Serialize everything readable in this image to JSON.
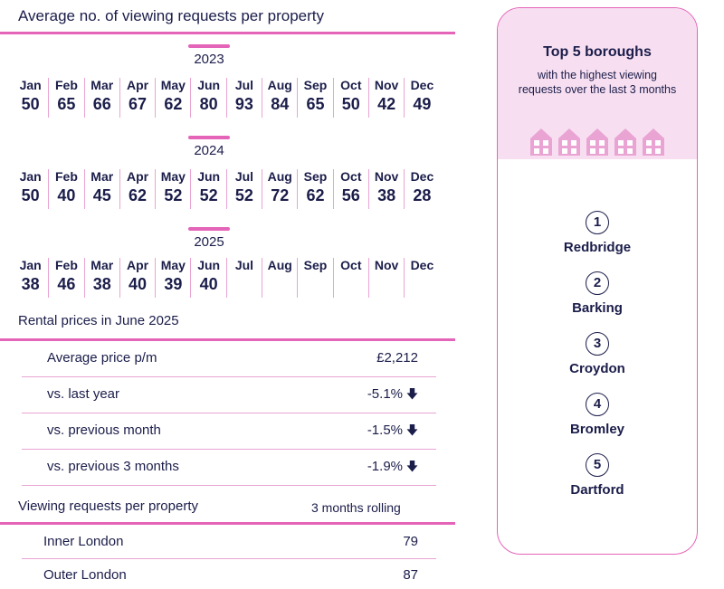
{
  "viewing_section": {
    "title": "Average no. of viewing requests per property",
    "years": [
      {
        "year": "2023",
        "months": [
          {
            "m": "Jan",
            "v": "50"
          },
          {
            "m": "Feb",
            "v": "65"
          },
          {
            "m": "Mar",
            "v": "66"
          },
          {
            "m": "Apr",
            "v": "67"
          },
          {
            "m": "May",
            "v": "62"
          },
          {
            "m": "Jun",
            "v": "80"
          },
          {
            "m": "Jul",
            "v": "93"
          },
          {
            "m": "Aug",
            "v": "84"
          },
          {
            "m": "Sep",
            "v": "65"
          },
          {
            "m": "Oct",
            "v": "50"
          },
          {
            "m": "Nov",
            "v": "42"
          },
          {
            "m": "Dec",
            "v": "49"
          }
        ]
      },
      {
        "year": "2024",
        "months": [
          {
            "m": "Jan",
            "v": "50"
          },
          {
            "m": "Feb",
            "v": "40"
          },
          {
            "m": "Mar",
            "v": "45"
          },
          {
            "m": "Apr",
            "v": "62"
          },
          {
            "m": "May",
            "v": "52"
          },
          {
            "m": "Jun",
            "v": "52"
          },
          {
            "m": "Jul",
            "v": "52"
          },
          {
            "m": "Aug",
            "v": "72"
          },
          {
            "m": "Sep",
            "v": "62"
          },
          {
            "m": "Oct",
            "v": "56"
          },
          {
            "m": "Nov",
            "v": "38"
          },
          {
            "m": "Dec",
            "v": "28"
          }
        ]
      },
      {
        "year": "2025",
        "months": [
          {
            "m": "Jan",
            "v": "38"
          },
          {
            "m": "Feb",
            "v": "46"
          },
          {
            "m": "Mar",
            "v": "38"
          },
          {
            "m": "Apr",
            "v": "40"
          },
          {
            "m": "May",
            "v": "39"
          },
          {
            "m": "Jun",
            "v": "40"
          },
          {
            "m": "Jul",
            "v": ""
          },
          {
            "m": "Aug",
            "v": ""
          },
          {
            "m": "Sep",
            "v": ""
          },
          {
            "m": "Oct",
            "v": ""
          },
          {
            "m": "Nov",
            "v": ""
          },
          {
            "m": "Dec",
            "v": ""
          }
        ]
      }
    ]
  },
  "rental": {
    "title": "Rental prices in June 2025",
    "rows": [
      {
        "label": "Average price p/m",
        "value": "£2,212",
        "arrow": false
      },
      {
        "label": "vs. last year",
        "value": "-5.1%",
        "arrow": true
      },
      {
        "label": "vs. previous month",
        "value": "-1.5%",
        "arrow": true
      },
      {
        "label": "vs. previous 3 months",
        "value": "-1.9%",
        "arrow": true
      }
    ]
  },
  "viewing_requests": {
    "title": "Viewing requests per property",
    "period": "3 months rolling",
    "rows": [
      {
        "label": "Inner London",
        "value": "79"
      },
      {
        "label": "Outer London",
        "value": "87"
      }
    ]
  },
  "boroughs": {
    "title": "Top 5 boroughs",
    "subtitle": "with the highest viewing requests over the last 3 months",
    "items": [
      {
        "rank": "1",
        "name": "Redbridge"
      },
      {
        "rank": "2",
        "name": "Barking"
      },
      {
        "rank": "3",
        "name": "Croydon"
      },
      {
        "rank": "4",
        "name": "Bromley"
      },
      {
        "rank": "5",
        "name": "Dartford"
      }
    ]
  },
  "icons": {
    "down_arrow": "arrow-down-icon",
    "house": "house-icon"
  },
  "colors": {
    "accent": "#e464b8",
    "navy": "#1b1d4a",
    "panel_bg": "#f7dff1",
    "divider": "#e9a4d3"
  }
}
